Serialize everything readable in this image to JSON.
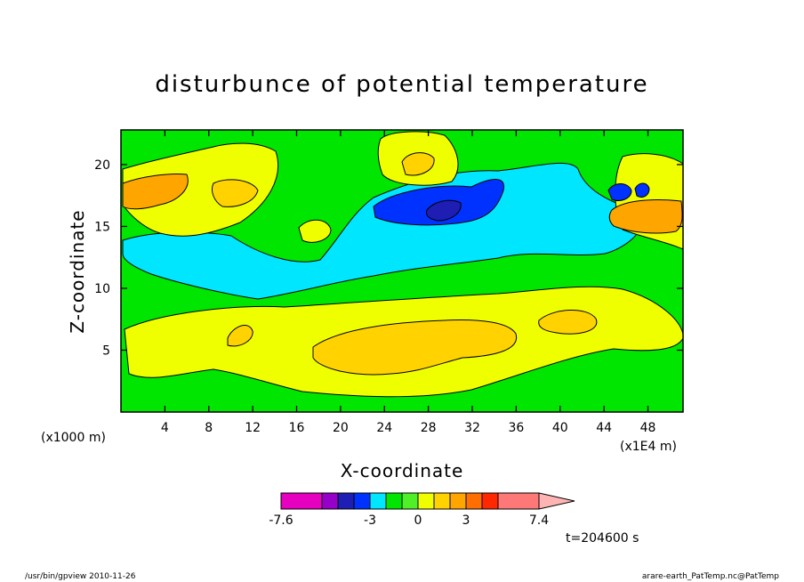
{
  "chart_data": {
    "type": "heatmap",
    "title": "disturbunce of potential temperature",
    "xlabel": "X-coordinate",
    "ylabel": "Z-coordinate",
    "x_unit": "(x1E4 m)",
    "y_unit": "(x1000 m)",
    "x_ticks": [
      4,
      8,
      12,
      16,
      20,
      24,
      28,
      32,
      36,
      40,
      44,
      48
    ],
    "y_ticks": [
      5,
      10,
      15,
      20
    ],
    "xlim": [
      0,
      51.2
    ],
    "ylim": [
      0,
      22.8
    ],
    "colorbar": {
      "levels": [
        -7.6,
        -6.6,
        -5.6,
        -4.6,
        -3,
        -2,
        -1,
        0,
        1,
        2,
        3,
        4,
        5,
        7.4
      ],
      "tick_labels": [
        "-7.6",
        "-3",
        "0",
        "3",
        "7.4"
      ],
      "colors": [
        "#e600c0",
        "#9600c8",
        "#1e1eb4",
        "#0032ff",
        "#00e6ff",
        "#00e600",
        "#50f028",
        "#f0ff00",
        "#ffd200",
        "#ffa500",
        "#ff6e00",
        "#ff2800",
        "#ff7878",
        "#ffb4b4"
      ]
    },
    "field_regions": [
      {
        "level": "0 to 1",
        "color": "#f0ff00",
        "description": "broad warm band z≈2–8, x≈1–44"
      },
      {
        "level": "1 to 2",
        "color": "#ffd200",
        "description": "warm core z≈4–6, x≈18–36"
      },
      {
        "level": "-1 to 0",
        "color": "#00e600",
        "description": "background"
      },
      {
        "level": "-2 to -1",
        "color": "#00e6ff",
        "description": "cool layer z≈10–17"
      },
      {
        "level": "-3 to -2",
        "color": "#0032ff",
        "description": "cold core z≈15–17, x≈24–33"
      },
      {
        "level": "2 to 3",
        "color": "#ffa500",
        "description": "upper-left tongue z≈16–18, x≈0–6"
      }
    ]
  },
  "annotations": {
    "time": "t=204600 s",
    "footer_left": "/usr/bin/gpview   2010-11-26",
    "footer_right": "arare-earth_PatTemp.nc@PatTemp"
  }
}
